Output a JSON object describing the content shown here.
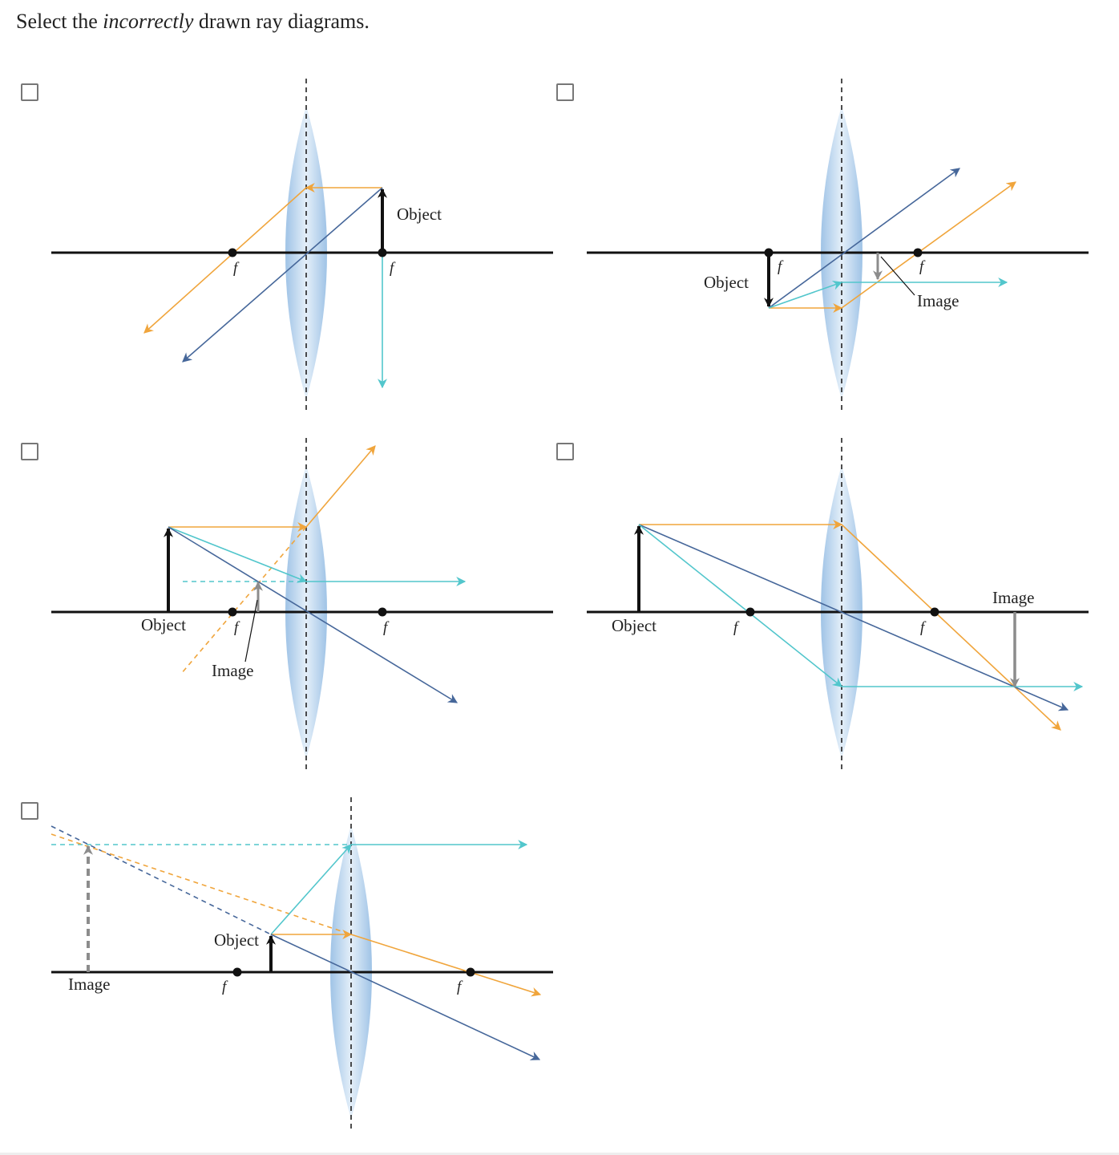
{
  "question": {
    "prefix": "Select the ",
    "emphasis": "incorrectly",
    "suffix": " drawn ray diagrams."
  },
  "labels": {
    "object": "Object",
    "image": "Image",
    "focal": "f"
  },
  "colors": {
    "parallel_ray": "#f0a53c",
    "center_ray": "#46679a",
    "focal_ray": "#52c6cc",
    "image_arrow": "#8c8c8c",
    "lens_fill": "#b8d3ec",
    "axis": "#111111"
  },
  "options": [
    {
      "id": "A",
      "checked": false
    },
    {
      "id": "B",
      "checked": false
    },
    {
      "id": "C",
      "checked": false
    },
    {
      "id": "D",
      "checked": false
    },
    {
      "id": "E",
      "checked": false
    }
  ]
}
